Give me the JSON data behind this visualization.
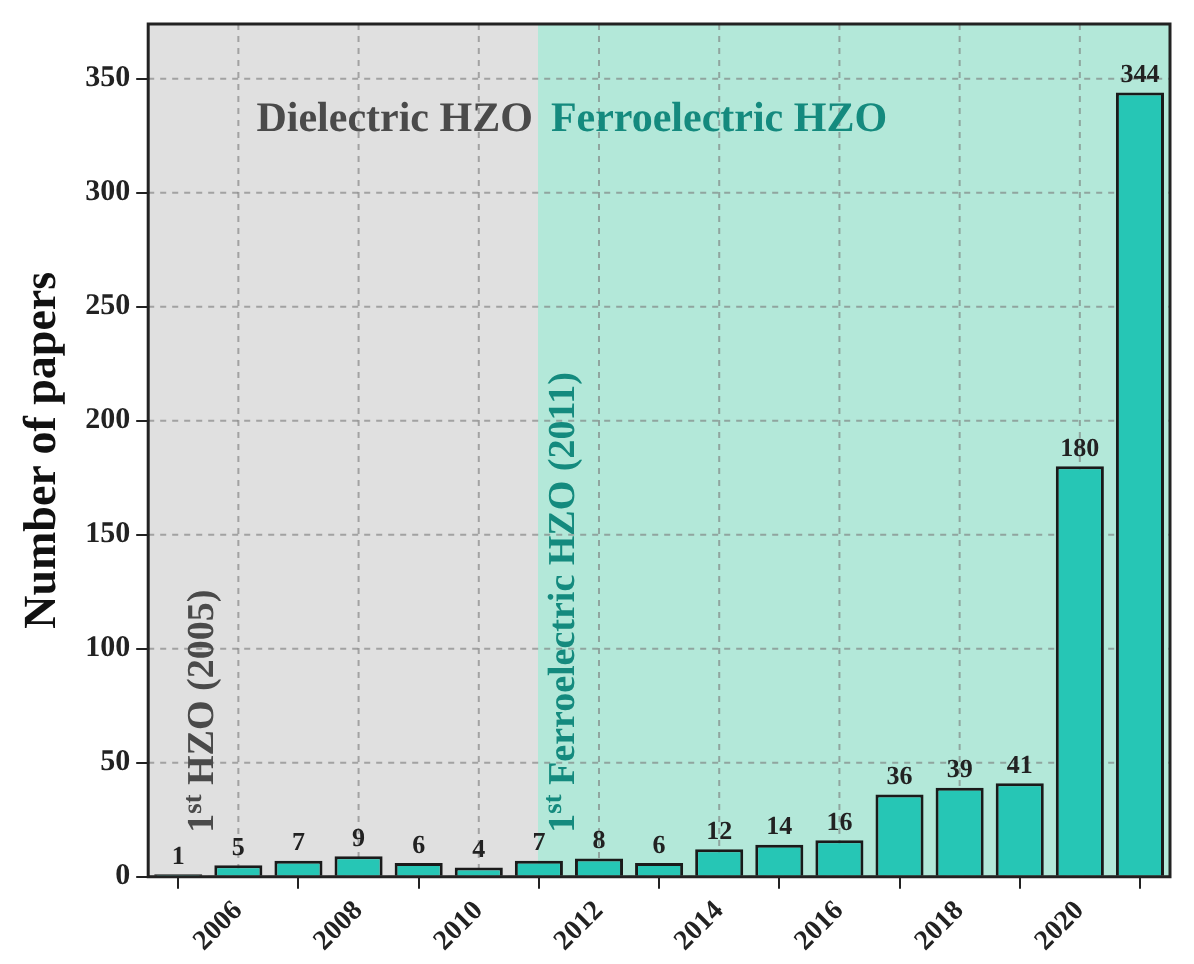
{
  "chart_data": {
    "type": "bar",
    "ylabel": "Number of papers",
    "x": [
      2005,
      2006,
      2007,
      2008,
      2009,
      2010,
      2011,
      2012,
      2013,
      2014,
      2015,
      2016,
      2017,
      2018,
      2019,
      2020,
      2021
    ],
    "values": [
      1,
      5,
      7,
      9,
      6,
      4,
      7,
      8,
      6,
      12,
      14,
      16,
      36,
      39,
      41,
      180,
      344
    ],
    "color": "#26c6b5",
    "data_labels": true,
    "xlim": [
      2004.5,
      2021.5
    ],
    "xticks": [
      2006,
      2008,
      2010,
      2012,
      2014,
      2016,
      2018,
      2020
    ],
    "ylim": [
      0,
      374
    ],
    "yticks": [
      0,
      50,
      100,
      150,
      200,
      250,
      300,
      350
    ],
    "grid": true,
    "bands": [
      {
        "axis": "x",
        "from": 2004.5,
        "to": 2011,
        "label": "Dielectric HZO",
        "color": "#e0e0e0"
      },
      {
        "axis": "x",
        "from": 2011,
        "to": 2021.5,
        "label": "Ferroelectric HZO",
        "color": "#b3e8d9"
      }
    ],
    "annotations": [
      {
        "text": "1$^{st}$ HZO (2005)",
        "x": 2005,
        "y": 0
      },
      {
        "text": "1$^{st}$ Ferroelectric HZO (2011)",
        "x": 2011,
        "y": 0
      }
    ]
  }
}
